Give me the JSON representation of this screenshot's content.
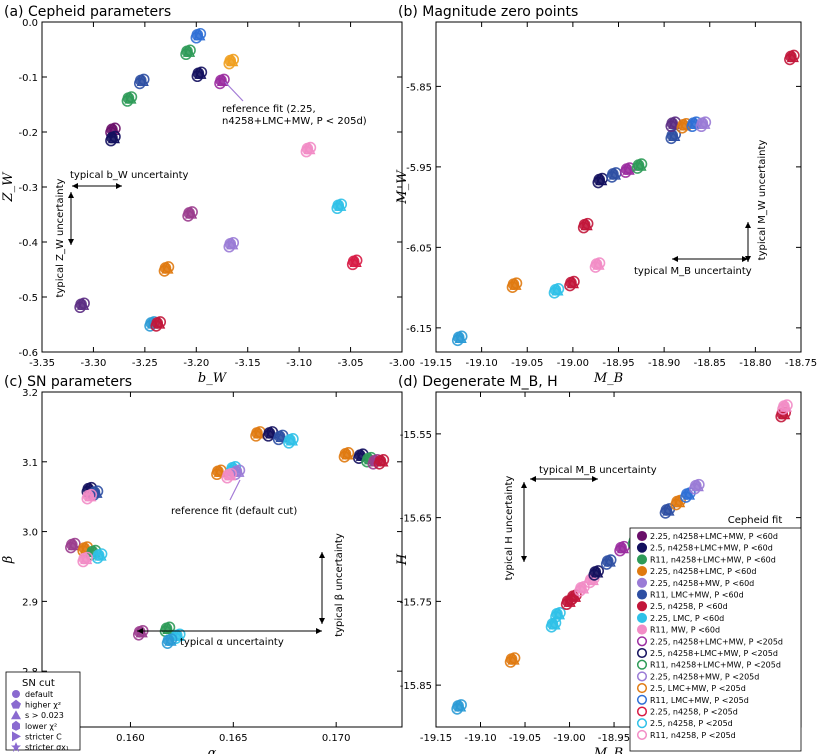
{
  "chart_data": [
    {
      "type": "scatter",
      "title": "(a) Cepheid parameters",
      "xlabel": "b_W",
      "ylabel": "Z_W",
      "xlim": [
        -3.35,
        -3.0
      ],
      "ylim": [
        -0.6,
        0.0
      ],
      "xticks": [
        "-3.35",
        "-3.30",
        "-3.25",
        "-3.20",
        "-3.15",
        "-3.10",
        "-3.05",
        "-3.00"
      ],
      "yticks": [
        "0.0",
        "-0.1",
        "-0.2",
        "-0.3",
        "-0.4",
        "-0.5",
        "-0.6"
      ],
      "points": [
        {
          "x": -3.311,
          "y": -0.515,
          "c": "#5b2c83"
        },
        {
          "x": -3.281,
          "y": -0.197,
          "c": "#6a0f6a"
        },
        {
          "x": -3.281,
          "y": -0.212,
          "c": "#13105e"
        },
        {
          "x": -3.265,
          "y": -0.14,
          "c": "#2e9b58"
        },
        {
          "x": -3.253,
          "y": -0.108,
          "c": "#2e4fa3"
        },
        {
          "x": -3.243,
          "y": -0.549,
          "c": "#2b9bd6"
        },
        {
          "x": -3.237,
          "y": -0.549,
          "c": "#c2163a"
        },
        {
          "x": -3.229,
          "y": -0.449,
          "c": "#e07a10"
        },
        {
          "x": -3.208,
          "y": -0.055,
          "c": "#2e9b58"
        },
        {
          "x": -3.206,
          "y": -0.349,
          "c": "#9b3d8e"
        },
        {
          "x": -3.198,
          "y": -0.025,
          "c": "#2e6fd6"
        },
        {
          "x": -3.197,
          "y": -0.095,
          "c": "#13105e"
        },
        {
          "x": -3.175,
          "y": -0.108,
          "c": "#9b2ca0"
        },
        {
          "x": -3.166,
          "y": -0.072,
          "c": "#f0a020"
        },
        {
          "x": -3.166,
          "y": -0.405,
          "c": "#9a7bd6"
        },
        {
          "x": -3.091,
          "y": -0.232,
          "c": "#f28cc6"
        },
        {
          "x": -3.061,
          "y": -0.335,
          "c": "#2fc1e8"
        },
        {
          "x": -3.046,
          "y": -0.437,
          "c": "#d81b45"
        }
      ],
      "annotations": [
        "typical b_W uncertainty",
        "typical Z_W uncertainty",
        "reference fit (2.25,",
        "n4258+LMC+MW, P < 205d)"
      ]
    },
    {
      "type": "scatter",
      "title": "(b) Magnitude zero points",
      "xlabel": "M_B",
      "ylabel": "M_W",
      "xlim": [
        -19.15,
        -18.75
      ],
      "ylim": [
        -6.18,
        -5.77
      ],
      "xticks": [
        "-19.15",
        "-19.10",
        "-19.05",
        "-19.00",
        "-18.95",
        "-18.90",
        "-18.85",
        "-18.80",
        "-18.75"
      ],
      "yticks": [
        "-5.85",
        "-5.95",
        "-6.05",
        "-6.15"
      ],
      "points": [
        {
          "x": -19.124,
          "y": -6.163,
          "c": "#2b9bd6"
        },
        {
          "x": -19.064,
          "y": -6.097,
          "c": "#e07a10"
        },
        {
          "x": -19.018,
          "y": -6.104,
          "c": "#2fc1e8"
        },
        {
          "x": -19.001,
          "y": -6.095,
          "c": "#c2163a"
        },
        {
          "x": -18.973,
          "y": -6.072,
          "c": "#f28cc6"
        },
        {
          "x": -18.986,
          "y": -6.023,
          "c": "#c2163a"
        },
        {
          "x": -18.97,
          "y": -5.967,
          "c": "#13105e"
        },
        {
          "x": -18.955,
          "y": -5.96,
          "c": "#2e4fa3"
        },
        {
          "x": -18.94,
          "y": -5.954,
          "c": "#9b2ca0"
        },
        {
          "x": -18.927,
          "y": -5.949,
          "c": "#2e9b58"
        },
        {
          "x": -18.89,
          "y": -5.912,
          "c": "#2e4fa3"
        },
        {
          "x": -18.89,
          "y": -5.897,
          "c": "#5b2c83"
        },
        {
          "x": -18.878,
          "y": -5.899,
          "c": "#e07a10"
        },
        {
          "x": -18.867,
          "y": -5.897,
          "c": "#2e6fd6"
        },
        {
          "x": -18.857,
          "y": -5.897,
          "c": "#9a7bd6"
        },
        {
          "x": -18.76,
          "y": -5.814,
          "c": "#c2163a"
        }
      ],
      "annotations": [
        "typical M_W uncertainty",
        "typical M_B uncertainty"
      ]
    },
    {
      "type": "scatter",
      "title": "(c) SN parameters",
      "xlabel": "α",
      "ylabel": "β",
      "xlim": [
        0.1557,
        0.1732
      ],
      "ylim": [
        2.72,
        3.2
      ],
      "xticks": [
        "0.160",
        "0.165",
        "0.170"
      ],
      "yticks": [
        "3.2",
        "3.1",
        "3.0",
        "2.9",
        "2.8"
      ],
      "points": [
        {
          "x": 0.1572,
          "y": 2.98,
          "c": "#9b3d8e"
        },
        {
          "x": 0.1578,
          "y": 2.975,
          "c": "#e07a10"
        },
        {
          "x": 0.1582,
          "y": 2.97,
          "c": "#2e9b58"
        },
        {
          "x": 0.1585,
          "y": 2.965,
          "c": "#2fc1e8"
        },
        {
          "x": 0.1578,
          "y": 2.96,
          "c": "#f28cc6"
        },
        {
          "x": 0.158,
          "y": 3.06,
          "c": "#13105e"
        },
        {
          "x": 0.1583,
          "y": 3.055,
          "c": "#2e4fa3"
        },
        {
          "x": 0.158,
          "y": 3.05,
          "c": "#f28cc6"
        },
        {
          "x": 0.1605,
          "y": 2.855,
          "c": "#9b3d8e"
        },
        {
          "x": 0.1618,
          "y": 2.86,
          "c": "#2e9b58"
        },
        {
          "x": 0.1623,
          "y": 2.85,
          "c": "#2fc1e8"
        },
        {
          "x": 0.1619,
          "y": 2.843,
          "c": "#2b9bd6"
        },
        {
          "x": 0.1643,
          "y": 3.085,
          "c": "#e07a10"
        },
        {
          "x": 0.165,
          "y": 3.09,
          "c": "#2fc1e8"
        },
        {
          "x": 0.1652,
          "y": 3.085,
          "c": "#9a7bd6"
        },
        {
          "x": 0.1648,
          "y": 3.08,
          "c": "#f28cc6"
        },
        {
          "x": 0.1662,
          "y": 3.14,
          "c": "#e07a10"
        },
        {
          "x": 0.1668,
          "y": 3.14,
          "c": "#13105e"
        },
        {
          "x": 0.1673,
          "y": 3.135,
          "c": "#2e4fa3"
        },
        {
          "x": 0.1678,
          "y": 3.13,
          "c": "#2fc1e8"
        },
        {
          "x": 0.1705,
          "y": 3.11,
          "c": "#e07a10"
        },
        {
          "x": 0.1712,
          "y": 3.108,
          "c": "#13105e"
        },
        {
          "x": 0.1716,
          "y": 3.103,
          "c": "#2e9b58"
        },
        {
          "x": 0.1719,
          "y": 3.1,
          "c": "#9b3d8e"
        },
        {
          "x": 0.1722,
          "y": 3.1,
          "c": "#c2163a"
        }
      ],
      "annotations": [
        "reference fit (default cut)",
        "typical α uncertainty",
        "typical β uncertainty"
      ]
    },
    {
      "type": "scatter",
      "title": "(d) Degenerate M_B, H",
      "xlabel": "M_B",
      "ylabel": "H",
      "xlim": [
        -19.15,
        -18.74
      ],
      "ylim": [
        -15.9,
        -15.5
      ],
      "xticks": [
        "-19.15",
        "-19.10",
        "-19.05",
        "-19.00",
        "-18.95"
      ],
      "yticks": [
        "-15.55",
        "-15.65",
        "-15.75",
        "-15.85"
      ],
      "points": [
        {
          "x": -19.124,
          "y": -15.876,
          "c": "#2b9bd6"
        },
        {
          "x": -19.064,
          "y": -15.82,
          "c": "#e07a10"
        },
        {
          "x": -19.018,
          "y": -15.778,
          "c": "#2fc1e8"
        },
        {
          "x": -19.013,
          "y": -15.766,
          "c": "#2fc1e8"
        },
        {
          "x": -19.001,
          "y": -15.751,
          "c": "#c2163a"
        },
        {
          "x": -18.995,
          "y": -15.745,
          "c": "#c2163a"
        },
        {
          "x": -18.986,
          "y": -15.735,
          "c": "#f28cc6"
        },
        {
          "x": -18.975,
          "y": -15.725,
          "c": "#f28cc6"
        },
        {
          "x": -18.97,
          "y": -15.716,
          "c": "#13105e"
        },
        {
          "x": -18.956,
          "y": -15.703,
          "c": "#2e4fa3"
        },
        {
          "x": -18.941,
          "y": -15.687,
          "c": "#9b2ca0"
        },
        {
          "x": -18.926,
          "y": -15.679,
          "c": "#2e9b58"
        },
        {
          "x": -18.89,
          "y": -15.642,
          "c": "#2e4fa3"
        },
        {
          "x": -18.878,
          "y": -15.632,
          "c": "#e07a10"
        },
        {
          "x": -18.867,
          "y": -15.623,
          "c": "#2e6fd6"
        },
        {
          "x": -18.857,
          "y": -15.613,
          "c": "#9a7bd6"
        },
        {
          "x": -18.76,
          "y": -15.527,
          "c": "#c2163a"
        },
        {
          "x": -18.758,
          "y": -15.518,
          "c": "#f28cc6"
        }
      ],
      "annotations": [
        "typical M_B uncertainty",
        "typical H uncertainty"
      ]
    }
  ],
  "sn_legend": {
    "title": "SN cut",
    "items": [
      {
        "label": "default",
        "icon": "circle-icon"
      },
      {
        "label": "higher χ²",
        "icon": "pentagon-icon"
      },
      {
        "label": "s > 0.023",
        "icon": "triangle-icon"
      },
      {
        "label": "lower χ²",
        "icon": "hexagon-icon"
      },
      {
        "label": "stricter C",
        "icon": "triangle-right-icon"
      },
      {
        "label": "stricter σx₁",
        "icon": "star-icon"
      }
    ]
  },
  "cepheid_legend": {
    "title": "Cepheid fit",
    "items": [
      {
        "label": "2.25, n4258+LMC+MW, P <60d",
        "color": "#6a0f6a",
        "filled": true
      },
      {
        "label": "2.5, n4258+LMC+MW, P <60d",
        "color": "#13105e",
        "filled": true
      },
      {
        "label": "R11, n4258+LMC+MW, P <60d",
        "color": "#2e9b58",
        "filled": true
      },
      {
        "label": "2.25, n4258+LMC, P <60d",
        "color": "#e07a10",
        "filled": true
      },
      {
        "label": "2.25, n4258+MW, P <60d",
        "color": "#9a7bd6",
        "filled": true
      },
      {
        "label": "R11, LMC+MW, P <60d",
        "color": "#2e4fa3",
        "filled": true
      },
      {
        "label": "2.5, n4258, P <60d",
        "color": "#c2163a",
        "filled": true
      },
      {
        "label": "2.25, LMC, P <60d",
        "color": "#2fc1e8",
        "filled": true
      },
      {
        "label": "R11, MW, P <60d",
        "color": "#f28cc6",
        "filled": true
      },
      {
        "label": "2.25, n4258+LMC+MW, P <205d",
        "color": "#9b2ca0",
        "filled": false
      },
      {
        "label": "2.5, n4258+LMC+MW, P <205d",
        "color": "#13105e",
        "filled": false
      },
      {
        "label": "R11, n4258+LMC+MW, P <205d",
        "color": "#2e9b58",
        "filled": false
      },
      {
        "label": "2.25, n4258+MW, P <205d",
        "color": "#9a7bd6",
        "filled": false
      },
      {
        "label": "2.5, LMC+MW, P <205d",
        "color": "#e07a10",
        "filled": false
      },
      {
        "label": "R11, LMC+MW, P <205d",
        "color": "#2e6fd6",
        "filled": false
      },
      {
        "label": "2.25, n4258, P <205d",
        "color": "#d81b45",
        "filled": false
      },
      {
        "label": "2.5, n4258, P <205d",
        "color": "#2fc1e8",
        "filled": false
      },
      {
        "label": "R11, n4258, P <205d",
        "color": "#f28cc6",
        "filled": false
      }
    ]
  }
}
